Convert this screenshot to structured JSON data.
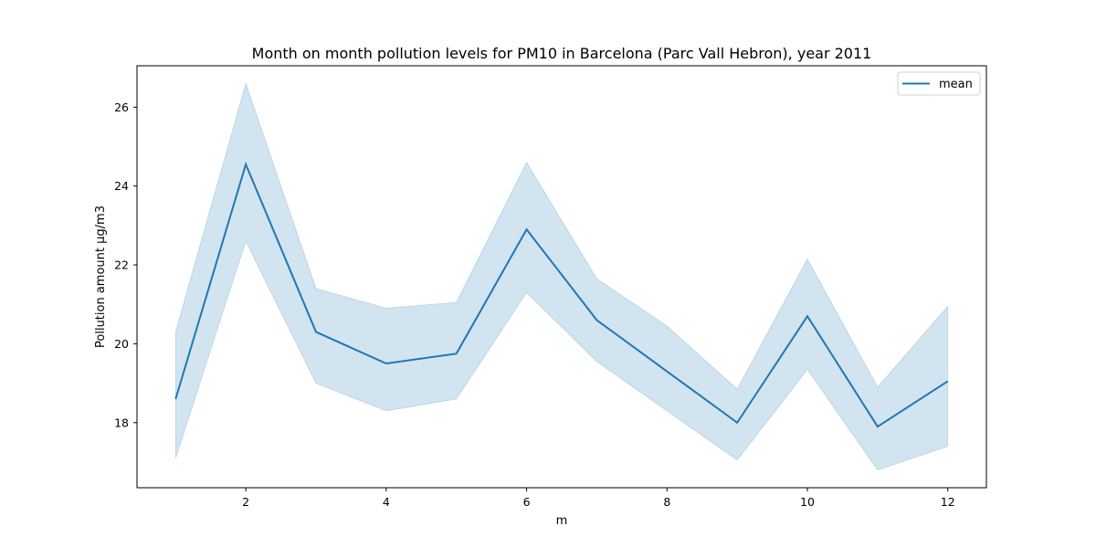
{
  "chart_data": {
    "type": "line",
    "title": "Month on month pollution levels for PM10 in Barcelona (Parc Vall Hebron), year 2011",
    "xlabel": "m",
    "ylabel": "Pollution amount μg/m3",
    "xlim": [
      0.45,
      12.55
    ],
    "ylim": [
      16.35,
      27.05
    ],
    "xticks": [
      2,
      4,
      6,
      8,
      10,
      12
    ],
    "yticks": [
      18,
      20,
      22,
      24,
      26
    ],
    "grid": false,
    "legend_position": "top-right",
    "colors": {
      "line": "#1f77b4",
      "band": "#1f77b4"
    },
    "series": [
      {
        "name": "mean",
        "x": [
          1,
          2,
          3,
          4,
          5,
          6,
          7,
          8,
          9,
          10,
          11,
          12
        ],
        "values": [
          18.6,
          24.55,
          20.3,
          19.5,
          19.75,
          22.9,
          20.6,
          19.3,
          18.0,
          20.7,
          17.9,
          19.05
        ],
        "lower": [
          17.1,
          22.6,
          19.0,
          18.3,
          18.6,
          21.3,
          19.55,
          18.3,
          17.05,
          19.35,
          16.8,
          17.4
        ],
        "upper": [
          20.3,
          26.6,
          21.4,
          20.9,
          21.05,
          24.6,
          21.65,
          20.45,
          18.85,
          22.15,
          18.9,
          20.95
        ]
      }
    ]
  }
}
